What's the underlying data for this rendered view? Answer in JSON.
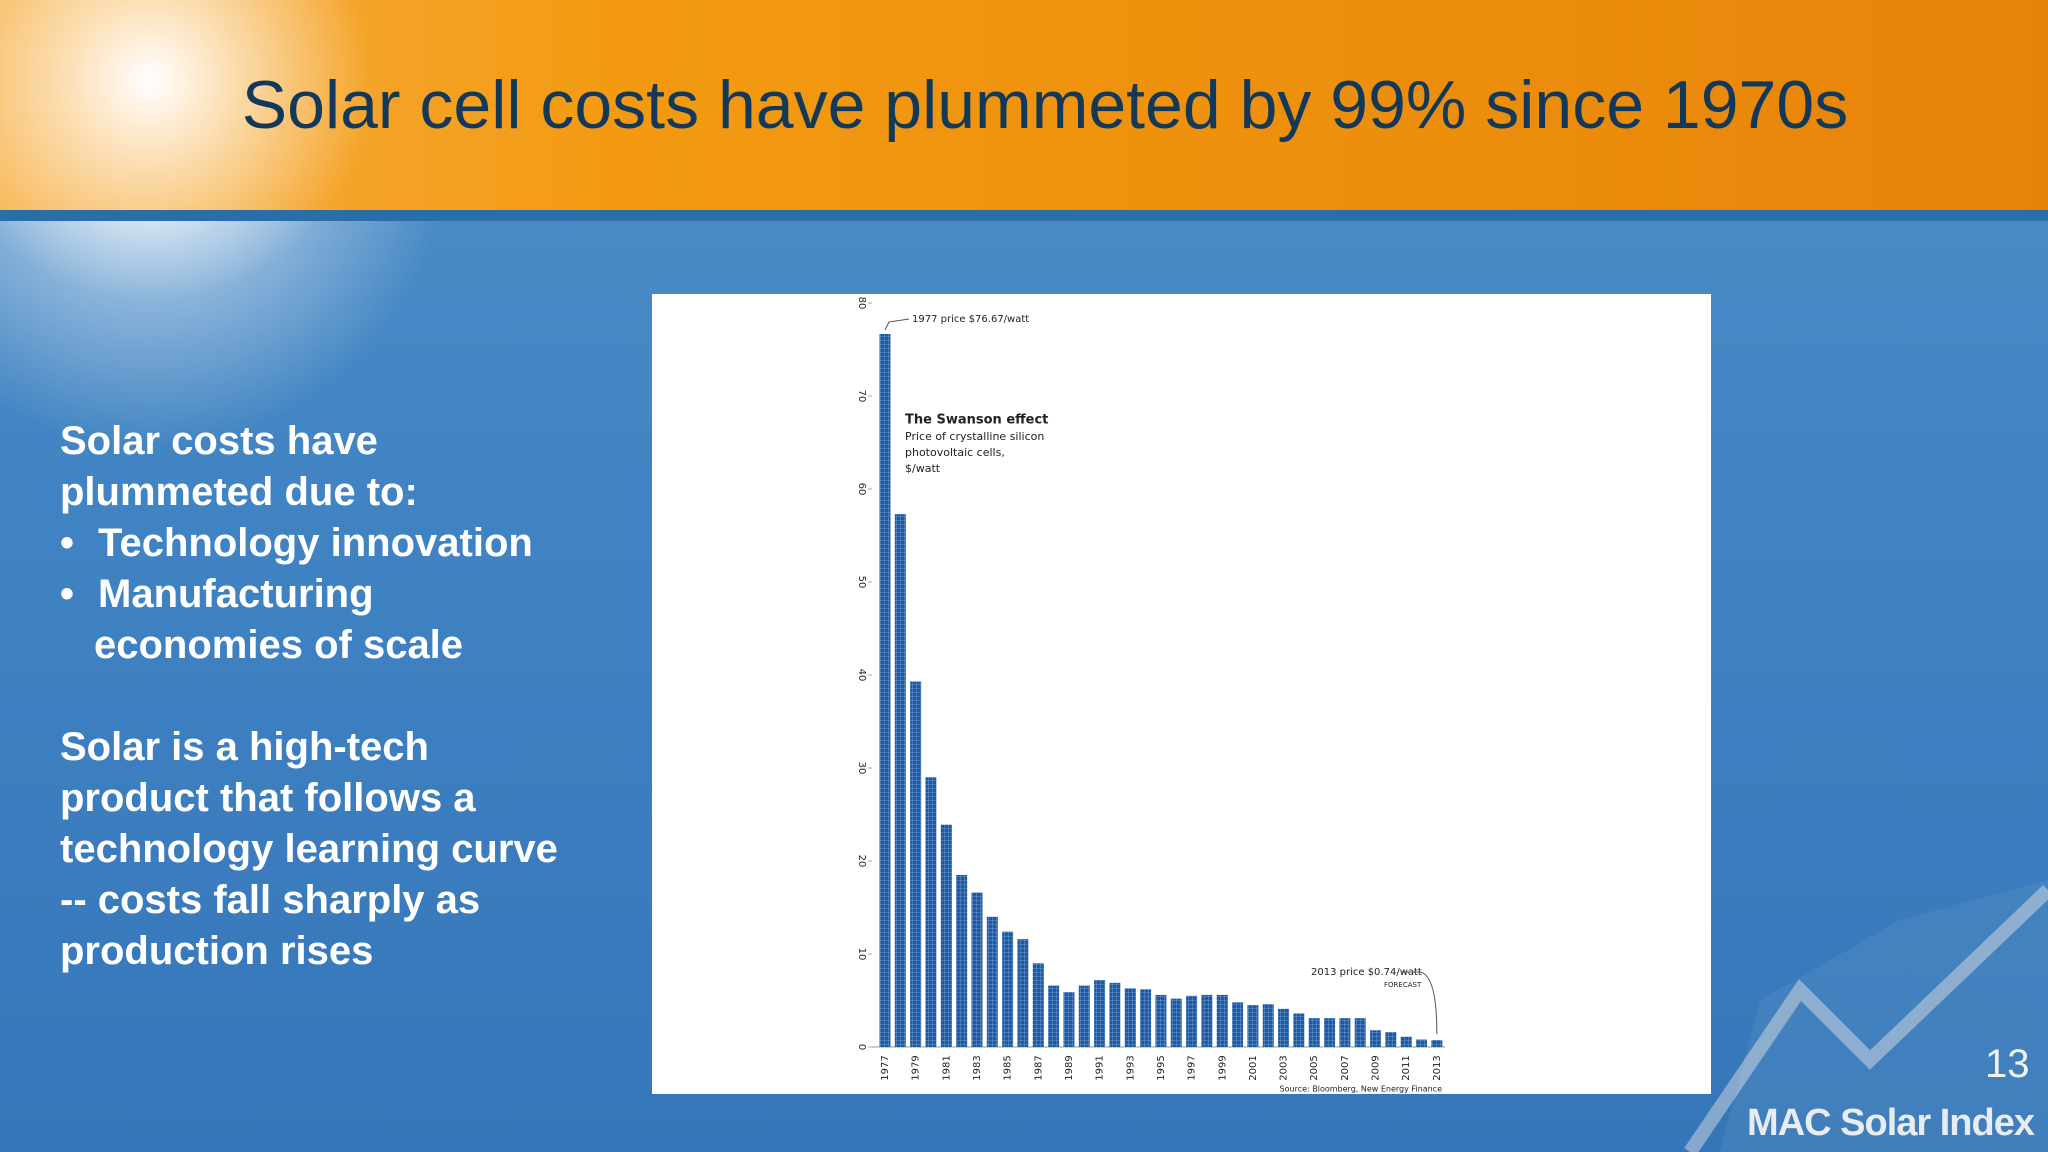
{
  "slide": {
    "title": "Solar cell costs have plummeted by 99% since 1970s",
    "body": {
      "intro": [
        "Solar costs have",
        "plummeted due to:"
      ],
      "bullets": [
        [
          "Technology innovation"
        ],
        [
          "Manufacturing",
          "economies of scale"
        ]
      ],
      "closing": [
        "Solar is a high-tech",
        "product that follows a",
        "technology learning curve",
        "-- costs fall sharply as",
        "production rises"
      ]
    },
    "page_number": "13",
    "logo": "MAC Solar Index"
  },
  "chart_data": {
    "type": "bar",
    "categories": [
      "1977",
      null,
      "1979",
      null,
      "1981",
      null,
      "1983",
      null,
      "1985",
      null,
      "1987",
      null,
      "1989",
      null,
      "1991",
      null,
      "1993",
      null,
      "1995",
      null,
      "1997",
      null,
      "1999",
      null,
      "2001",
      null,
      "2003",
      null,
      "2005",
      null,
      "2007",
      null,
      "2009",
      null,
      "2011",
      null,
      "2013"
    ],
    "values": [
      76.67,
      57.3,
      39.3,
      29.0,
      23.9,
      18.5,
      16.6,
      14.0,
      12.4,
      11.6,
      9.0,
      6.6,
      5.9,
      6.6,
      7.2,
      6.9,
      6.3,
      6.2,
      5.6,
      5.2,
      5.5,
      5.6,
      5.6,
      4.8,
      4.5,
      4.6,
      4.1,
      3.6,
      3.1,
      3.1,
      3.1,
      3.1,
      1.8,
      1.6,
      1.1,
      0.8,
      0.74
    ],
    "color": "#1b5aa6",
    "ylim": [
      0,
      80
    ],
    "yticks": [
      0,
      10,
      20,
      30,
      40,
      50,
      60,
      70,
      80
    ],
    "annotations": {
      "peak": "1977 price $76.67/watt",
      "title": "The Swanson effect",
      "subtitle": [
        "Price of crystalline silicon",
        "photovoltaic cells,",
        "$/watt"
      ],
      "end": "2013 price $0.74/watt",
      "forecast": "FORECAST",
      "source": "Source: Bloomberg, New Energy Finance"
    }
  }
}
